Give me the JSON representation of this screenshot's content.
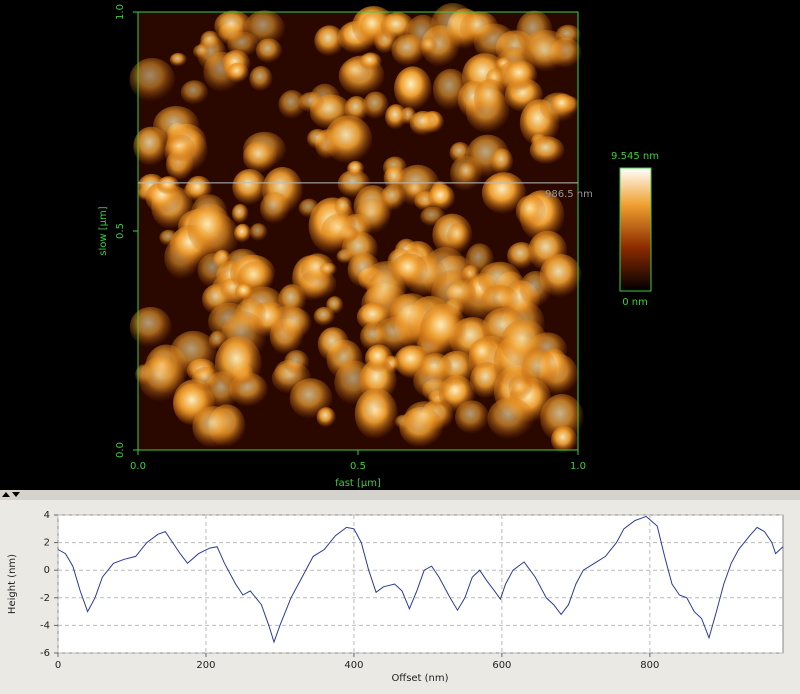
{
  "chart_data": [
    {
      "type": "heatmap",
      "xlabel": "fast [µm]",
      "ylabel": "slow [µm]",
      "xlim": [
        0,
        1
      ],
      "ylim": [
        0,
        1
      ],
      "xticks": [
        {
          "value": 0,
          "label": "0.0"
        },
        {
          "value": 0.5,
          "label": "0.5"
        },
        {
          "value": 1,
          "label": "1.0"
        }
      ],
      "yticks": [
        {
          "value": 0,
          "label": "0.0"
        },
        {
          "value": 0.5,
          "label": "0.5"
        },
        {
          "value": 1,
          "label": "1.0"
        }
      ],
      "clim": [
        0,
        9.545
      ],
      "cticks": [
        {
          "value": 0,
          "label": "0 nm"
        },
        {
          "value": 9.545,
          "label": "9.545 nm"
        }
      ],
      "annotation": {
        "text": "986.5 nm",
        "y": 0.61
      }
    },
    {
      "type": "line",
      "xlabel": "Offset (nm)",
      "ylabel": "Height (nm)",
      "xlim": [
        0,
        980
      ],
      "ylim": [
        -6,
        4
      ],
      "xticks": [
        0,
        200,
        400,
        600,
        800
      ],
      "yticks": [
        -6,
        -4,
        -2,
        0,
        2,
        4
      ],
      "grid": true,
      "x": [
        0,
        10,
        20,
        30,
        40,
        50,
        60,
        75,
        90,
        105,
        120,
        135,
        145,
        155,
        165,
        175,
        190,
        205,
        215,
        225,
        240,
        250,
        260,
        275,
        285,
        292,
        300,
        315,
        330,
        345,
        360,
        375,
        390,
        400,
        410,
        420,
        430,
        440,
        455,
        465,
        475,
        485,
        495,
        505,
        515,
        525,
        530,
        540,
        550,
        560,
        570,
        580,
        590,
        598,
        605,
        615,
        630,
        645,
        660,
        670,
        680,
        690,
        700,
        710,
        725,
        740,
        755,
        765,
        780,
        795,
        810,
        820,
        830,
        840,
        850,
        860,
        870,
        880,
        890,
        900,
        910,
        920,
        935,
        945,
        955,
        965,
        970,
        980
      ],
      "series": [
        {
          "color": "#2b3a9a",
          "values": [
            1.5,
            1.2,
            0.3,
            -1.5,
            -3.0,
            -2.0,
            -0.5,
            0.5,
            0.8,
            1.0,
            2.0,
            2.6,
            2.8,
            2.0,
            1.2,
            0.5,
            1.2,
            1.6,
            1.7,
            0.5,
            -1.0,
            -1.8,
            -1.5,
            -2.5,
            -4.0,
            -5.2,
            -4.0,
            -2.0,
            -0.5,
            1.0,
            1.5,
            2.5,
            3.1,
            3.0,
            2.0,
            0.0,
            -1.6,
            -1.2,
            -1.0,
            -1.5,
            -2.8,
            -1.5,
            0.0,
            0.3,
            -0.5,
            -1.5,
            -2.0,
            -2.9,
            -2.0,
            -0.5,
            0.0,
            -0.8,
            -1.5,
            -2.1,
            -1.0,
            0.0,
            0.6,
            -0.5,
            -2.0,
            -2.5,
            -3.2,
            -2.5,
            -1.0,
            0.0,
            0.5,
            1.0,
            2.0,
            3.0,
            3.6,
            3.9,
            3.2,
            1.0,
            -1.0,
            -1.8,
            -2.0,
            -3.0,
            -3.5,
            -4.9,
            -3.0,
            -1.0,
            0.5,
            1.5,
            2.5,
            3.1,
            2.8,
            2.0,
            1.2,
            1.7
          ]
        }
      ]
    }
  ]
}
